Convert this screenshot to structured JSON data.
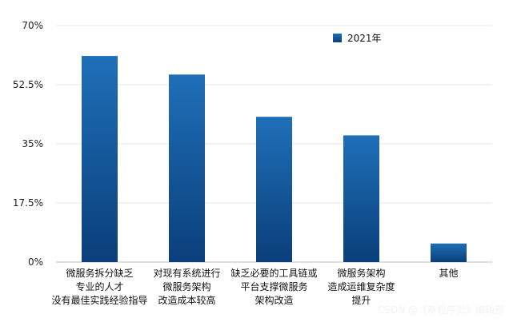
{
  "chart_data": {
    "type": "bar",
    "categories": [
      "微服务拆分缺乏\n专业的人才\n没有最佳实践经验指导",
      "对现有系统进行\n微服务架构\n改造成本较高",
      "缺乏必要的工具链或\n平台支撑微服务\n架构改造",
      "微服务架构\n造成运维复杂度\n提升",
      "其他"
    ],
    "series": [
      {
        "name": "2021年",
        "values": [
          61,
          55.5,
          43,
          37.5,
          5.5
        ]
      }
    ],
    "y_ticks": [
      "0%",
      "17.5%",
      "35%",
      "52.5%",
      "70%"
    ],
    "ylim": [
      0,
      70
    ],
    "grid": true,
    "legend_position": "top-right",
    "colors": {
      "bar_top": "#1f6fb8",
      "bar_bottom": "#0a3f7a",
      "grid": "#e6e6e6",
      "axis": "#bfbfbf"
    },
    "title": "",
    "xlabel": "",
    "ylabel": ""
  },
  "watermark": "CSDN @《新程序员》编辑部"
}
